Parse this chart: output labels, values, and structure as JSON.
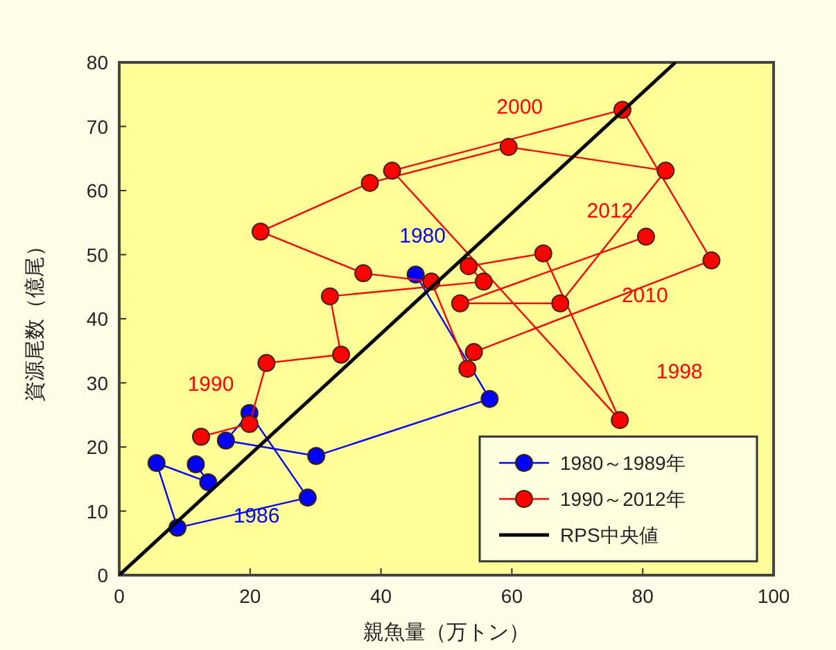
{
  "chart_data": {
    "type": "line",
    "xlabel": "親魚量（万トン）",
    "ylabel": "資源尾数（億尾）",
    "xlim": [
      0,
      100
    ],
    "ylim": [
      0,
      80
    ],
    "xticks": [
      0,
      20,
      40,
      60,
      80,
      100
    ],
    "yticks": [
      0,
      10,
      20,
      30,
      40,
      50,
      60,
      70,
      80
    ],
    "grid": false,
    "legend": "bottom right",
    "marker": "circle",
    "series": [
      {
        "name": "1980～1989年",
        "color": "#0000ff",
        "x": [
          45.3,
          56.6,
          30.1,
          16.3,
          19.9,
          28.8,
          8.9,
          5.7,
          13.6,
          11.7
        ],
        "values": [
          46.9,
          27.5,
          18.6,
          21,
          25.3,
          12.1,
          7.4,
          17.5,
          14.5,
          17.3
        ]
      },
      {
        "name": "1990～2012年",
        "color": "#ff0000",
        "x": [
          12.5,
          19.9,
          22.5,
          33.9,
          32.2,
          55.7,
          53.4,
          64.8,
          76.5,
          41.7,
          76.9,
          90.5,
          54.2,
          53.2,
          47.7,
          37.3,
          21.6,
          38.3,
          59.5,
          83.5,
          67.4,
          52.1,
          80.5
        ],
        "values": [
          21.6,
          23.6,
          33.1,
          34.4,
          43.5,
          45.8,
          48.2,
          50.2,
          24.2,
          63.1,
          72.6,
          49.1,
          34.8,
          32.2,
          45.8,
          47.1,
          53.6,
          61.2,
          66.8,
          63.1,
          42.4,
          42.4,
          52.8
        ]
      },
      {
        "name": "RPS中央値",
        "color": "#000000",
        "marker": "none",
        "x": [
          0,
          85
        ],
        "values": [
          0,
          80
        ]
      }
    ],
    "annotations": [
      {
        "text": "1980",
        "x": 45.3,
        "y": 46.9
      },
      {
        "text": "1986",
        "x": 8.9,
        "y": 7.4
      },
      {
        "text": "1990",
        "x": 12.5,
        "y": 21.6
      },
      {
        "text": "1998",
        "x": 76.5,
        "y": 24.2
      },
      {
        "text": "2000",
        "x": 59.5,
        "y": 66.8
      },
      {
        "text": "2010",
        "x": 67.4,
        "y": 42.4
      },
      {
        "text": "2012",
        "x": 80.5,
        "y": 52.8
      }
    ]
  }
}
